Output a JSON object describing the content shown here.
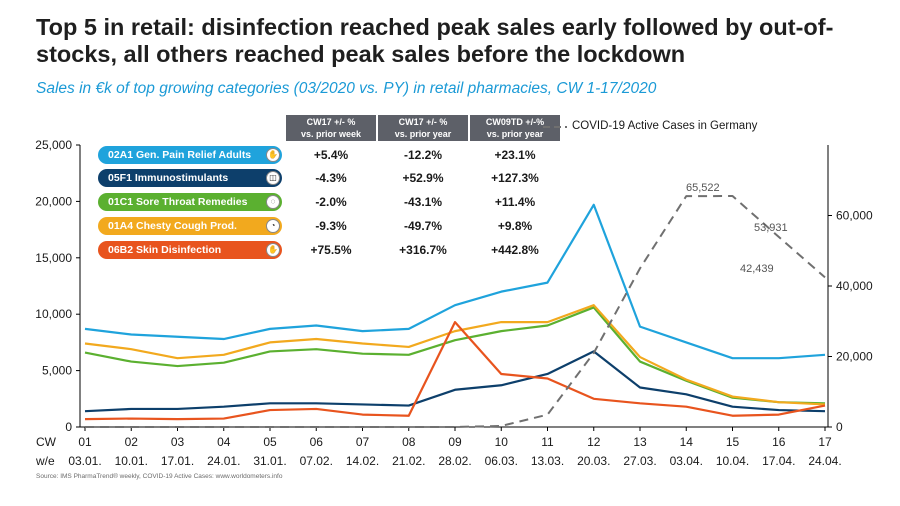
{
  "title": "Top 5 in retail: disinfection reached peak sales early followed by out-of-stocks, all others reached peak sales before the lockdown",
  "subtitle": "Sales in €k of top growing categories (03/2020 vs. PY) in retail pharmacies, CW 1-17/2020",
  "source": "Source: IMS PharmaTrend® weekly, COVID-19 Active Cases: www.worldometers.info",
  "covid_legend": "COVID-19 Active Cases in Germany",
  "table": {
    "headers": [
      "CW17 +/- %\nvs. prior week",
      "CW17 +/- %\nvs. prior year",
      "CW09TD +/-%\nvs. prior year"
    ],
    "rows": [
      {
        "label": "02A1 Gen. Pain Relief Adults",
        "values": [
          "+5.4%",
          "-12.2%",
          "+23.1%"
        ]
      },
      {
        "label": "05F1 Immunostimulants",
        "values": [
          "-4.3%",
          "+52.9%",
          "+127.3%"
        ]
      },
      {
        "label": "01C1 Sore Throat Remedies",
        "values": [
          "-2.0%",
          "-43.1%",
          "+11.4%"
        ]
      },
      {
        "label": "01A4 Chesty Cough Prod.",
        "values": [
          "-9.3%",
          "-49.7%",
          "+9.8%"
        ]
      },
      {
        "label": "06B2 Skin Disinfection",
        "values": [
          "+75.5%",
          "+316.7%",
          "+442.8%"
        ]
      }
    ]
  },
  "chart_data": {
    "type": "line",
    "x_prefix": [
      "CW",
      "w/e"
    ],
    "categories": [
      "01",
      "02",
      "03",
      "04",
      "05",
      "06",
      "07",
      "08",
      "09",
      "10",
      "11",
      "12",
      "13",
      "14",
      "15",
      "16",
      "17"
    ],
    "week_ending": [
      "03.01.",
      "10.01.",
      "17.01.",
      "24.01.",
      "31.01.",
      "07.02.",
      "14.02.",
      "21.02.",
      "28.02.",
      "06.03.",
      "13.03.",
      "20.03.",
      "27.03.",
      "03.04.",
      "10.04.",
      "17.04.",
      "24.04."
    ],
    "y_left": {
      "min": 0,
      "max": 25000,
      "ticks": [
        0,
        5000,
        10000,
        15000,
        20000,
        25000
      ],
      "tick_labels": [
        "0",
        "5,000",
        "10,000",
        "15,000",
        "20,000",
        "25,000"
      ]
    },
    "y_right": {
      "min": 0,
      "max": 80000,
      "ticks": [
        0,
        20000,
        40000,
        60000
      ],
      "tick_labels": [
        "0",
        "20,000",
        "40,000",
        "60,000"
      ]
    },
    "series": [
      {
        "name": "02A1 Gen. Pain Relief Adults",
        "color": "#1fa3dc",
        "axis": "left",
        "values": [
          8700,
          8200,
          8000,
          7800,
          8700,
          9000,
          8500,
          8700,
          10800,
          12000,
          12800,
          19700,
          8900,
          7500,
          6100,
          6100,
          6400
        ]
      },
      {
        "name": "05F1 Immunostimulants",
        "color": "#0d3f6b",
        "axis": "left",
        "values": [
          1400,
          1600,
          1600,
          1800,
          2100,
          2100,
          2000,
          1900,
          3300,
          3700,
          4700,
          6700,
          3500,
          2900,
          1800,
          1500,
          1400
        ]
      },
      {
        "name": "01C1 Sore Throat Remedies",
        "color": "#5bb030",
        "axis": "left",
        "values": [
          6600,
          5800,
          5400,
          5700,
          6700,
          6900,
          6500,
          6400,
          7700,
          8500,
          9000,
          10600,
          5800,
          4100,
          2600,
          2200,
          2100
        ]
      },
      {
        "name": "01A4 Chesty Cough Prod.",
        "color": "#f2a91e",
        "axis": "left",
        "values": [
          7400,
          6900,
          6100,
          6400,
          7500,
          7800,
          7400,
          7100,
          8500,
          9300,
          9300,
          10800,
          6200,
          4200,
          2700,
          2200,
          2000
        ]
      },
      {
        "name": "06B2 Skin Disinfection",
        "color": "#e8541e",
        "axis": "left",
        "values": [
          700,
          750,
          700,
          750,
          1500,
          1600,
          1100,
          1000,
          9300,
          4700,
          4300,
          2500,
          2100,
          1800,
          1000,
          1100,
          1900
        ]
      },
      {
        "name": "COVID-19 Active Cases in Germany",
        "color": "#707070",
        "axis": "right",
        "dashed": true,
        "values": [
          0,
          0,
          0,
          0,
          0,
          0,
          0,
          0,
          0,
          300,
          3500,
          21000,
          45000,
          65500,
          65522,
          53931,
          42439
        ]
      }
    ],
    "annotations": [
      "65,522",
      "53,931",
      "42,439"
    ]
  }
}
